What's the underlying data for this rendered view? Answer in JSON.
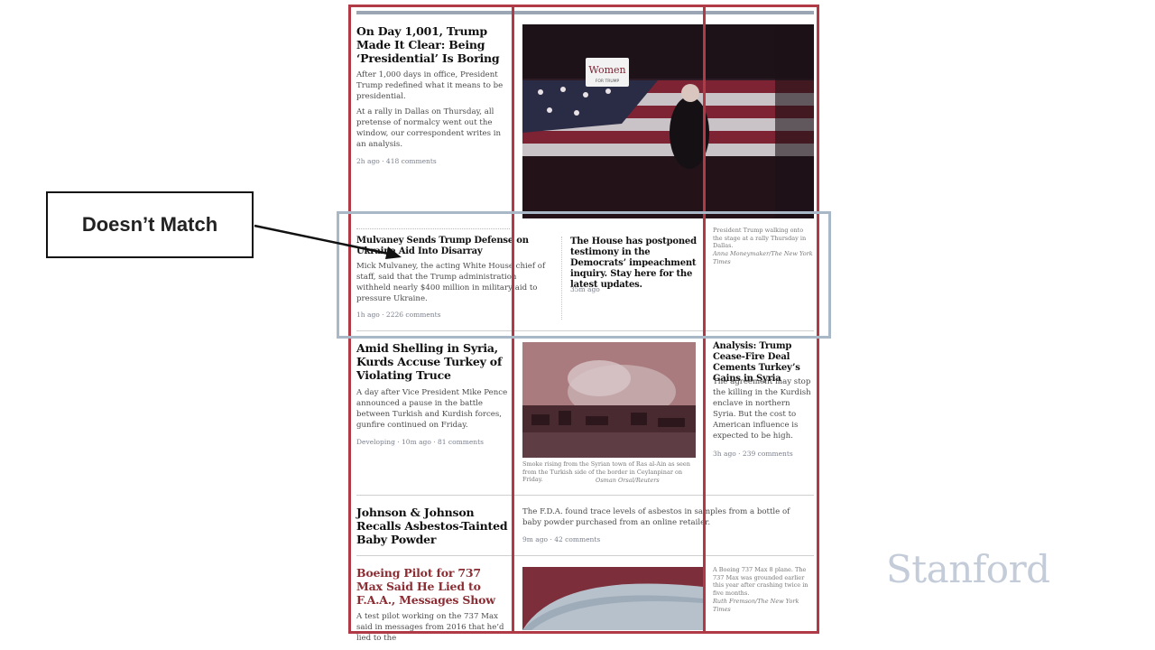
{
  "callout": {
    "label": "Doesn’t Match"
  },
  "watermark": {
    "text": "Stanford"
  },
  "colors": {
    "column_box": "#b13a47",
    "mismatch_box": "#a8b8c7",
    "divider": "#cfcfcf"
  },
  "stories": {
    "trump": {
      "headline": "On Day 1,001, Trump Made It Clear: Being ‘Presidential’ Is Boring",
      "bullet1": "After 1,000 days in office, President Trump redefined what it means to be presidential.",
      "bullet2": "At a rally in Dallas on Thursday, all pretense of normalcy went out the window, our correspondent writes in an analysis.",
      "meta": "2h ago · 418 comments",
      "image_sign": "Women",
      "image_sign_sub": "FOR TRUMP",
      "caption": "President Trump walking onto the stage at a rally Thursday in Dallas.",
      "credit": "Anna Moneymaker/The New York Times"
    },
    "mulvaney": {
      "headline": "Mulvaney Sends Trump Defense on Ukraine Aid Into Disarray",
      "summary": "Mick Mulvaney, the acting White House chief of staff, said that the Trump administration withheld nearly $400 million in military aid to pressure Ukraine.",
      "meta": "1h ago · 2226 comments"
    },
    "house": {
      "headline": "The House has postponed testimony in the Democrats’ impeachment inquiry. Stay here for the latest updates.",
      "meta": "35m ago"
    },
    "syria": {
      "headline": "Amid Shelling in Syria, Kurds Accuse Turkey of Violating Truce",
      "summary": "A day after Vice President Mike Pence announced a pause in the battle between Turkish and Kurdish forces, gunfire continued on Friday.",
      "meta": "Developing · 10m ago · 81 comments",
      "caption": "Smoke rising from the Syrian town of Ras al-Ain as seen from the Turkish side of the border in Ceylanpinar on Friday.",
      "credit": "Osman Orsal/Reuters"
    },
    "syria_analysis": {
      "headline": "Analysis: Trump Cease-Fire Deal Cements Turkey’s Gains in Syria",
      "summary": "The agreement may stop the killing in the Kurdish enclave in northern Syria. But the cost to American influence is expected to be high.",
      "meta": "3h ago · 239 comments"
    },
    "jnj": {
      "headline": "Johnson & Johnson Recalls Asbestos-Tainted Baby Powder",
      "summary": "The F.D.A. found trace levels of asbestos in samples from a bottle of baby powder purchased from an online retailer.",
      "meta": "9m ago · 42 comments"
    },
    "boeing": {
      "headline": "Boeing Pilot for 737 Max Said He Lied to F.A.A., Messages Show",
      "summary": "A test pilot working on the 737 Max said in messages from 2016 that he’d lied to the",
      "caption": "A Boeing 737 Max 8 plane. The 737 Max was grounded earlier this year after crashing twice in five months.",
      "credit": "Ruth Fremson/The New York Times"
    }
  }
}
